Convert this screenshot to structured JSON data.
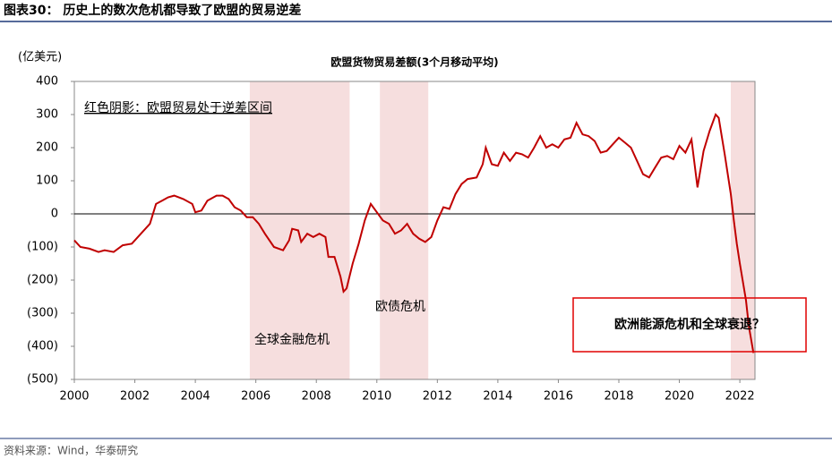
{
  "header": {
    "title": "图表30：  历史上的数次危机都导致了欧盟的贸易逆差"
  },
  "chart_data": {
    "type": "line",
    "title": "欧盟货物贸易差额(3个月移动平均)",
    "y_unit": "(亿美元)",
    "color": "#c00000",
    "x": [
      2000.0,
      2000.2,
      2000.5,
      2000.8,
      2001.0,
      2001.3,
      2001.6,
      2001.9,
      2002.2,
      2002.5,
      2002.7,
      2002.9,
      2003.1,
      2003.3,
      2003.6,
      2003.9,
      2004.0,
      2004.2,
      2004.4,
      2004.7,
      2004.9,
      2005.1,
      2005.3,
      2005.5,
      2005.7,
      2005.9,
      2006.1,
      2006.3,
      2006.6,
      2006.9,
      2007.1,
      2007.2,
      2007.4,
      2007.5,
      2007.7,
      2007.9,
      2008.1,
      2008.3,
      2008.4,
      2008.6,
      2008.8,
      2008.9,
      2009.0,
      2009.2,
      2009.4,
      2009.6,
      2009.8,
      2010.0,
      2010.2,
      2010.4,
      2010.6,
      2010.8,
      2011.0,
      2011.2,
      2011.4,
      2011.6,
      2011.8,
      2012.0,
      2012.2,
      2012.4,
      2012.6,
      2012.8,
      2013.0,
      2013.3,
      2013.5,
      2013.6,
      2013.8,
      2014.0,
      2014.2,
      2014.4,
      2014.6,
      2014.8,
      2015.0,
      2015.2,
      2015.4,
      2015.6,
      2015.8,
      2016.0,
      2016.2,
      2016.4,
      2016.6,
      2016.8,
      2017.0,
      2017.2,
      2017.4,
      2017.6,
      2017.8,
      2018.0,
      2018.2,
      2018.4,
      2018.6,
      2018.8,
      2019.0,
      2019.2,
      2019.4,
      2019.6,
      2019.8,
      2020.0,
      2020.2,
      2020.4,
      2020.6,
      2020.8,
      2021.0,
      2021.2,
      2021.3,
      2021.5,
      2021.7,
      2021.8,
      2021.9,
      2022.0,
      2022.2,
      2022.3,
      2022.45
    ],
    "values": [
      -80,
      -100,
      -105,
      -115,
      -110,
      -115,
      -95,
      -90,
      -60,
      -30,
      30,
      40,
      50,
      55,
      45,
      30,
      5,
      10,
      40,
      55,
      55,
      45,
      20,
      10,
      -10,
      -10,
      -30,
      -60,
      -100,
      -110,
      -80,
      -45,
      -50,
      -85,
      -60,
      -70,
      -60,
      -70,
      -130,
      -130,
      -190,
      -235,
      -225,
      -150,
      -90,
      -20,
      30,
      5,
      -20,
      -30,
      -60,
      -50,
      -30,
      -60,
      -75,
      -85,
      -70,
      -20,
      20,
      15,
      60,
      90,
      105,
      110,
      150,
      200,
      150,
      145,
      185,
      160,
      185,
      180,
      170,
      200,
      235,
      200,
      210,
      200,
      225,
      230,
      275,
      240,
      235,
      220,
      185,
      190,
      210,
      230,
      215,
      200,
      160,
      120,
      110,
      140,
      170,
      175,
      165,
      205,
      185,
      225,
      80,
      190,
      250,
      300,
      290,
      180,
      60,
      -20,
      -90,
      -150,
      -260,
      -340,
      -420
    ],
    "xlim": [
      2000,
      2022.5
    ],
    "xticks": [
      2000,
      2002,
      2004,
      2006,
      2008,
      2010,
      2012,
      2014,
      2016,
      2018,
      2020,
      2022
    ],
    "ylim": [
      -500,
      400
    ],
    "yticks": [
      400,
      300,
      200,
      100,
      0,
      {
        "value": -100,
        "label": "(100)"
      },
      {
        "value": -200,
        "label": "(200)"
      },
      {
        "value": -300,
        "label": "(300)"
      },
      {
        "value": -400,
        "label": "(400)"
      },
      {
        "value": -500,
        "label": "(500)"
      }
    ],
    "shade_color": "#f6dede",
    "shaded_regions": [
      {
        "start": 2005.8,
        "end": 2009.1
      },
      {
        "start": 2010.1,
        "end": 2011.7
      },
      {
        "start": 2021.7,
        "end": 2022.5
      }
    ],
    "annotations": [
      "红色阴影：欧盟贸易处于逆差区间",
      "全球金融危机",
      "欧债危机",
      "欧洲能源危机和全球衰退？"
    ]
  },
  "footer": {
    "source": "资料来源：Wind，华泰研究"
  }
}
